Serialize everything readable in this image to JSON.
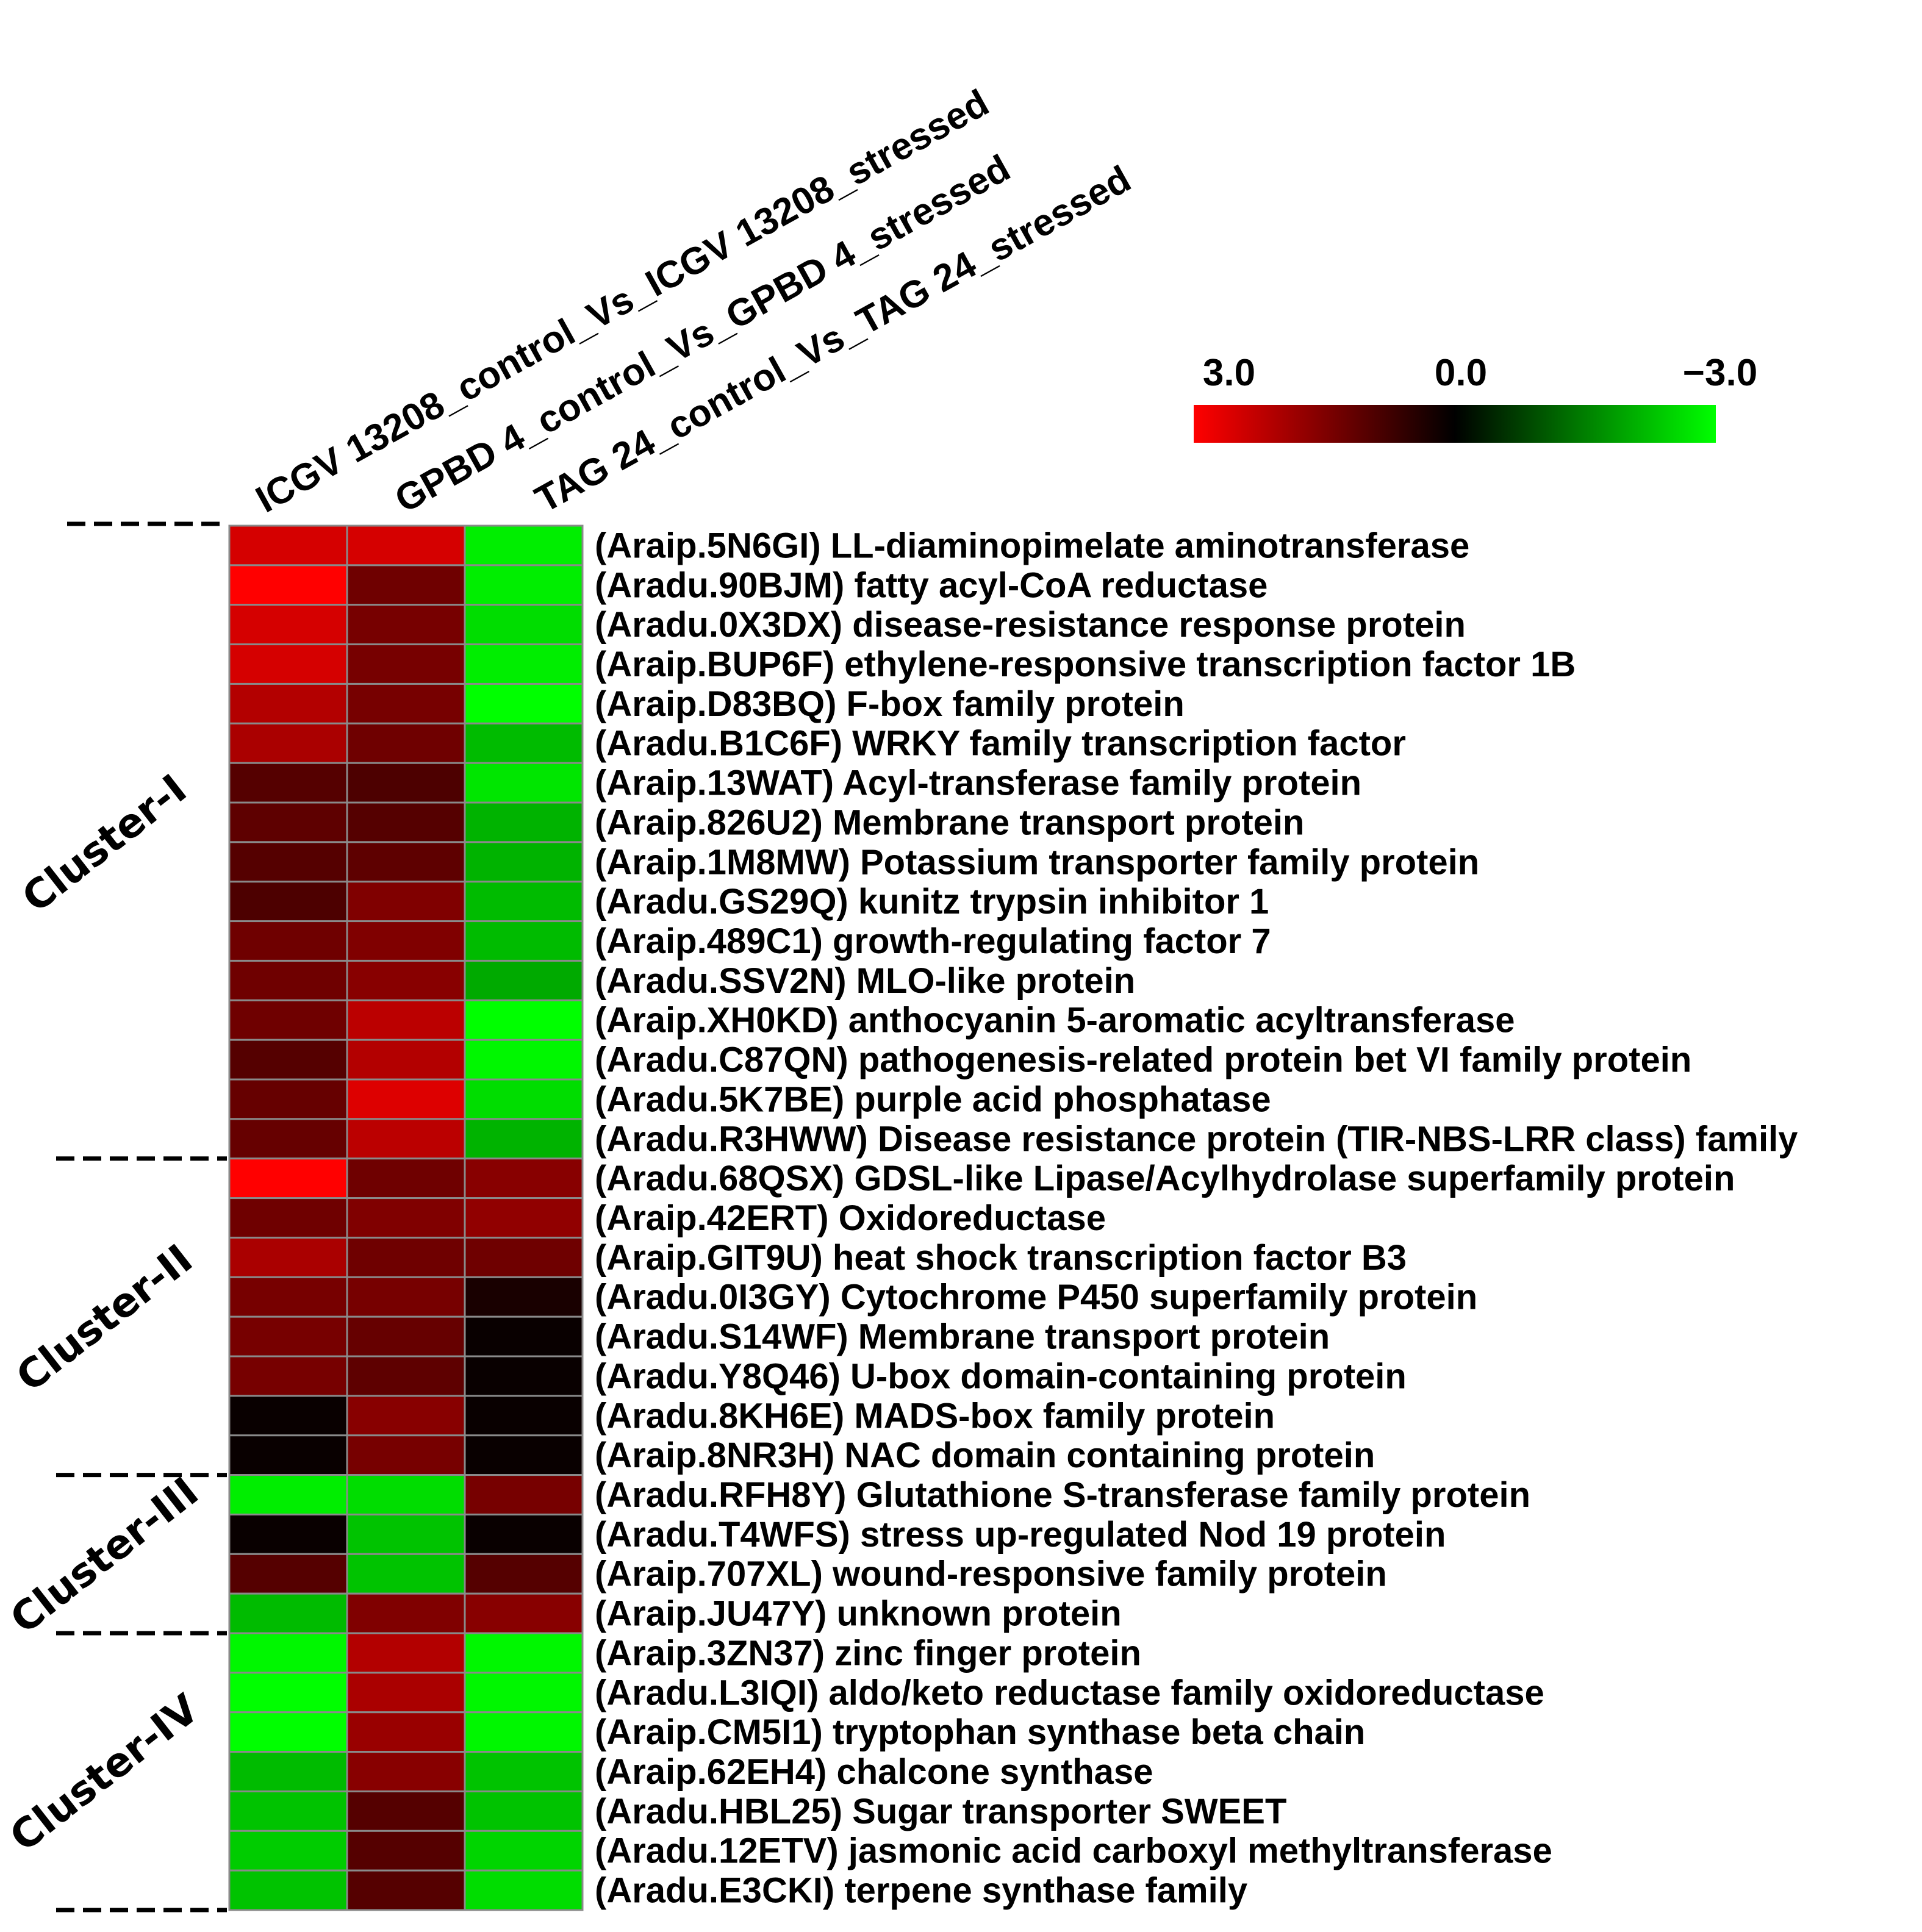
{
  "chart_data": {
    "type": "heatmap",
    "title": "",
    "columns": [
      "ICGV 13208_control_Vs_ICGV 13208_stressed",
      "GPBD 4_control_Vs_GPBD 4_stressed",
      "TAG 24_control_Vs_TAG 24_stressed"
    ],
    "color_scale": {
      "min": -3.0,
      "max": 3.0,
      "tick_labels": [
        "3.0",
        "0.0",
        "−3.0"
      ],
      "high_color": "#ff0000",
      "mid_color": "#000000",
      "low_color": "#00ff00"
    },
    "clusters": [
      {
        "name": "Cluster-I",
        "start": 0,
        "count": 16
      },
      {
        "name": "Cluster-II",
        "start": 16,
        "count": 8
      },
      {
        "name": "Cluster-III",
        "start": 24,
        "count": 4
      },
      {
        "name": "Cluster-IV",
        "start": 28,
        "count": 7
      }
    ],
    "rows": [
      "(Araip.5N6GI) LL-diaminopimelate aminotransferase",
      "(Aradu.90BJM) fatty acyl-CoA reductase",
      "(Aradu.0X3DX) disease-resistance response protein",
      "(Araip.BUP6F) ethylene-responsive transcription factor 1B",
      "(Araip.D83BQ) F-box family protein",
      "(Aradu.B1C6F) WRKY family transcription factor",
      "(Araip.13WAT) Acyl-transferase family protein",
      "(Araip.826U2) Membrane transport protein",
      "(Araip.1M8MW) Potassium transporter family protein",
      "(Aradu.GS29Q) kunitz trypsin inhibitor 1",
      "(Araip.489C1) growth-regulating factor 7",
      "(Aradu.SSV2N) MLO-like protein",
      "(Araip.XH0KD) anthocyanin 5-aromatic acyltransferase",
      "(Aradu.C87QN) pathogenesis-related protein bet VI family protein",
      "(Aradu.5K7BE) purple acid phosphatase",
      "(Aradu.R3HWW) Disease resistance protein (TIR-NBS-LRR class) family",
      "(Aradu.68QSX) GDSL-like Lipase/Acylhydrolase superfamily protein",
      "(Araip.42ERT) Oxidoreductase",
      "(Araip.GIT9U) heat shock transcription factor B3",
      "(Aradu.0I3GY) Cytochrome P450 superfamily protein",
      "(Aradu.S14WF) Membrane transport protein",
      "(Aradu.Y8Q46) U-box domain-containing protein",
      "(Aradu.8KH6E) MADS-box family protein",
      "(Araip.8NR3H) NAC domain containing protein",
      "(Aradu.RFH8Y) Glutathione S-transferase family protein",
      "(Aradu.T4WFS) stress up-regulated Nod 19 protein",
      "(Araip.707XL) wound-responsive family protein",
      "(Araip.JU47Y) unknown protein",
      "(Araip.3ZN37) zinc finger protein",
      "(Aradu.L3IQI) aldo/keto reductase family oxidoreductase",
      "(Araip.CM5I1) tryptophan synthase beta chain",
      "(Araip.62EH4) chalcone synthase",
      "(Aradu.HBL25) Sugar transporter SWEET",
      "(Aradu.12ETV) jasmonic acid carboxyl methyltransferase",
      "(Aradu.E3CKI) terpene synthase family"
    ],
    "values": [
      [
        2.5,
        2.5,
        -2.8
      ],
      [
        3.0,
        1.3,
        -2.8
      ],
      [
        2.5,
        1.4,
        -2.6
      ],
      [
        2.5,
        1.4,
        -2.8
      ],
      [
        2.1,
        1.4,
        -3.0
      ],
      [
        2.0,
        1.3,
        -2.2
      ],
      [
        1.0,
        0.9,
        -2.7
      ],
      [
        1.1,
        1.0,
        -2.1
      ],
      [
        1.0,
        1.1,
        -2.1
      ],
      [
        0.9,
        1.5,
        -2.2
      ],
      [
        1.3,
        1.5,
        -2.2
      ],
      [
        1.3,
        1.6,
        -2.0
      ],
      [
        1.3,
        2.2,
        -3.0
      ],
      [
        1.0,
        2.1,
        -2.9
      ],
      [
        1.2,
        2.6,
        -2.6
      ],
      [
        1.2,
        2.2,
        -2.1
      ],
      [
        3.0,
        1.3,
        1.6
      ],
      [
        1.3,
        1.5,
        1.7
      ],
      [
        2.0,
        1.3,
        1.3
      ],
      [
        1.4,
        1.4,
        0.3
      ],
      [
        1.4,
        1.2,
        0.1
      ],
      [
        1.4,
        1.1,
        0.1
      ],
      [
        0.1,
        1.6,
        0.1
      ],
      [
        0.1,
        1.4,
        0.1
      ],
      [
        -2.8,
        -2.6,
        1.4
      ],
      [
        0.1,
        -2.3,
        0.1
      ],
      [
        1.0,
        -2.3,
        1.0
      ],
      [
        -2.2,
        1.5,
        1.6
      ],
      [
        -2.9,
        2.1,
        -2.9
      ],
      [
        -3.0,
        2.0,
        -2.9
      ],
      [
        -3.0,
        1.8,
        -2.9
      ],
      [
        -2.2,
        1.6,
        -2.3
      ],
      [
        -2.3,
        1.0,
        -2.3
      ],
      [
        -2.4,
        1.0,
        -2.5
      ],
      [
        -2.3,
        1.0,
        -2.6
      ]
    ]
  }
}
